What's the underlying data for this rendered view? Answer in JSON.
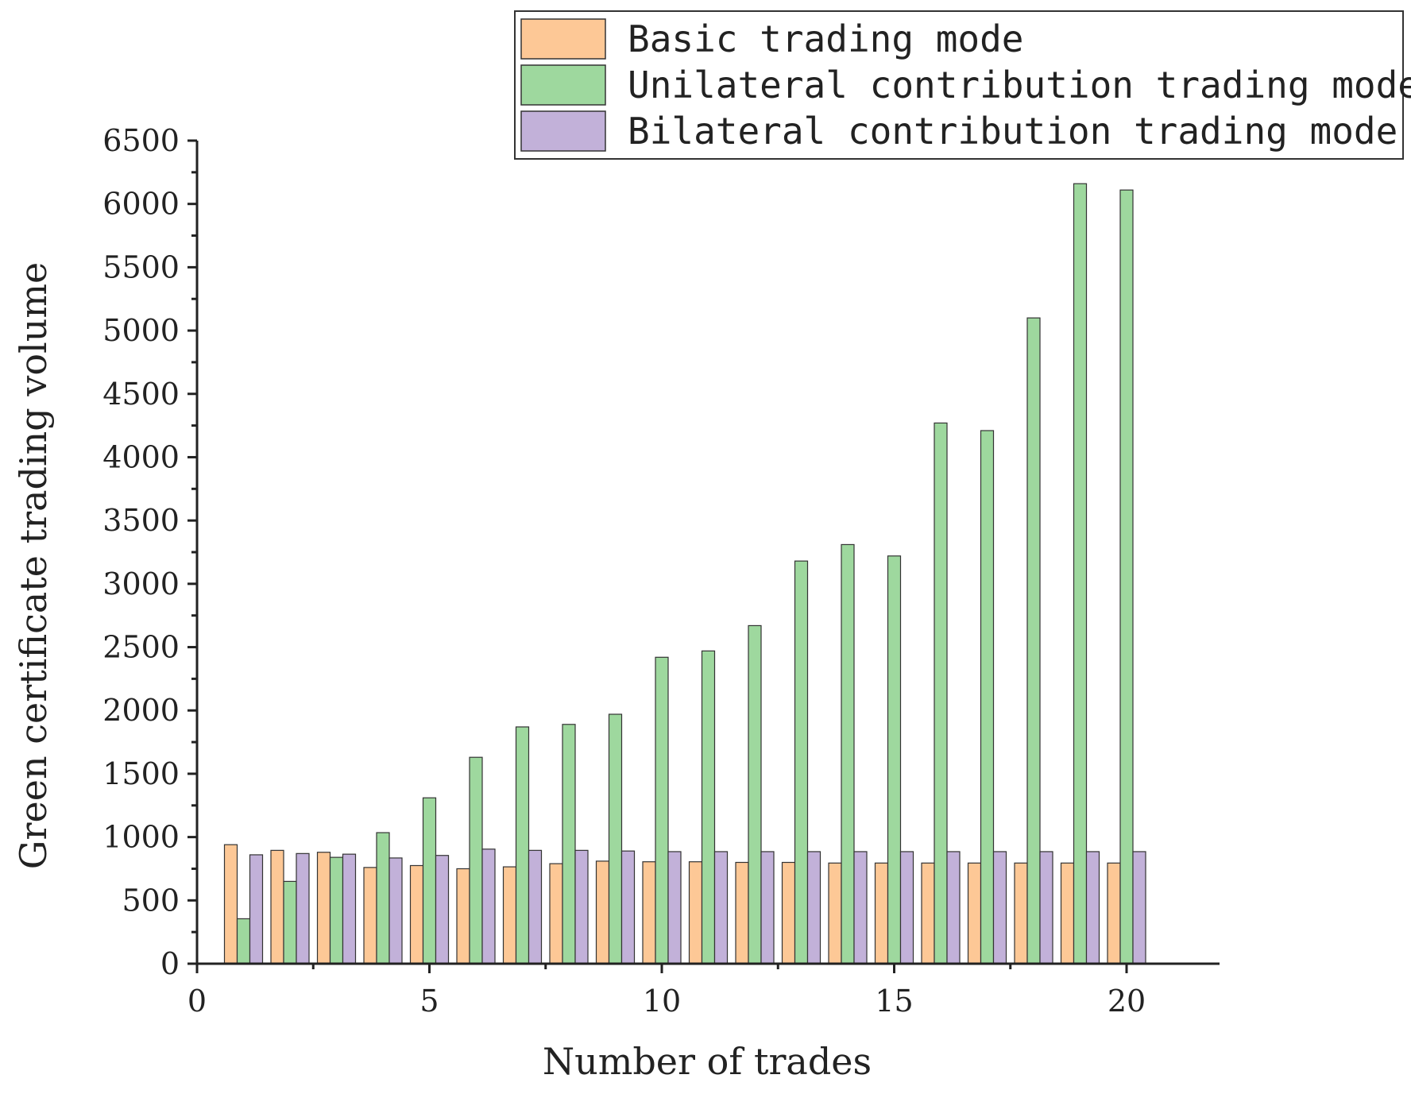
{
  "chart_data": {
    "type": "bar",
    "title": "",
    "xlabel": "Number of trades",
    "ylabel": "Green certificate trading volume",
    "xlim": [
      0,
      22
    ],
    "ylim": [
      0,
      6500
    ],
    "x_ticks": [
      0,
      5,
      10,
      15,
      20
    ],
    "y_ticks": [
      0,
      500,
      1000,
      1500,
      2000,
      2500,
      3000,
      3500,
      4000,
      4500,
      5000,
      5500,
      6000,
      6500
    ],
    "x_tick_labels": [
      "0",
      "5",
      "10",
      "15",
      "20"
    ],
    "y_tick_labels": [
      "0",
      "500",
      "1000",
      "1500",
      "2000",
      "2500",
      "3000",
      "3500",
      "4000",
      "4500",
      "5000",
      "5500",
      "6000",
      "6500"
    ],
    "legend_position": "top-right",
    "grid": false,
    "x": [
      1,
      2,
      3,
      4,
      5,
      6,
      7,
      8,
      9,
      10,
      11,
      12,
      13,
      14,
      15,
      16,
      17,
      18,
      19,
      20
    ],
    "series": [
      {
        "name": "Basic trading mode",
        "color": "#fdc896",
        "values": [
          940,
          895,
          880,
          760,
          775,
          750,
          765,
          790,
          810,
          805,
          805,
          800,
          800,
          795,
          795,
          795,
          795,
          795,
          795,
          795
        ]
      },
      {
        "name": "Unilateral contribution trading mode",
        "color": "#9ed89e",
        "values": [
          355,
          650,
          840,
          1035,
          1310,
          1630,
          1870,
          1890,
          1970,
          2420,
          2470,
          2670,
          3180,
          3310,
          3220,
          4270,
          4210,
          5100,
          6160,
          6110
        ]
      },
      {
        "name": "Bilateral contribution trading mode",
        "color": "#c2b1d9",
        "values": [
          860,
          870,
          865,
          835,
          855,
          905,
          895,
          895,
          890,
          885,
          885,
          885,
          885,
          885,
          885,
          885,
          885,
          885,
          885,
          885
        ]
      }
    ]
  }
}
